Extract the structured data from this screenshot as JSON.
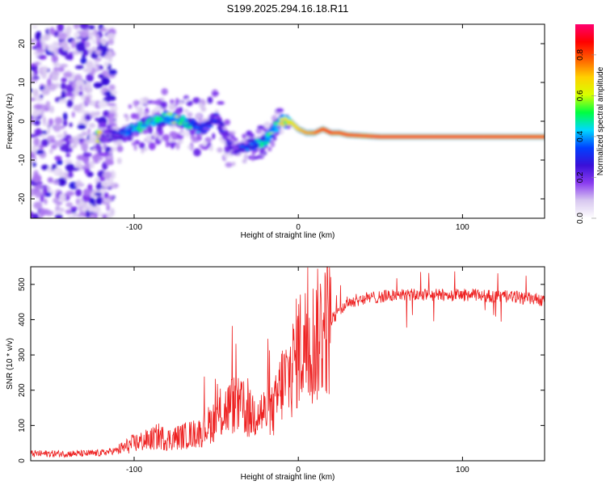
{
  "title": "S199.2025.294.16.18.R11",
  "chart_data": [
    {
      "type": "heatmap",
      "panel": "spectrogram",
      "xlabel": "Height of straight line (km)",
      "ylabel": "Frequency (Hz)",
      "xlim": [
        -163,
        150
      ],
      "ylim": [
        -25,
        25
      ],
      "xticks": [
        -100,
        0,
        100
      ],
      "yticks": [
        -20,
        -10,
        0,
        10,
        20
      ],
      "colorbar": {
        "label": "Normalized spectral amplitude",
        "range": [
          0.0,
          0.95
        ],
        "ticks": [
          0.0,
          0.2,
          0.4,
          0.6,
          0.8
        ],
        "colormap": [
          "#ffffff",
          "#d8c8f0",
          "#8a3cf0",
          "#3a10d8",
          "#0040ff",
          "#00d8ff",
          "#00ff40",
          "#d8ff00",
          "#ffd000",
          "#ff6000",
          "#ff0000",
          "#ff0070"
        ]
      },
      "ridge": {
        "x": [
          -120,
          -105,
          -100,
          -90,
          -80,
          -70,
          -60,
          -55,
          -50,
          -45,
          -40,
          -35,
          -30,
          -25,
          -20,
          -15,
          -10,
          -5,
          0,
          5,
          10,
          15,
          20,
          25,
          30,
          50,
          100,
          150
        ],
        "y": [
          -4,
          -3,
          -2,
          0,
          1,
          0,
          -2,
          -1,
          1,
          -3,
          -7,
          -7,
          -6,
          -6,
          -5,
          -2,
          0,
          0,
          -2,
          -3,
          -3,
          -2,
          -3,
          -3,
          -3.5,
          -4,
          -4,
          -4
        ],
        "peak_amplitude": [
          0.2,
          0.35,
          0.5,
          0.45,
          0.55,
          0.5,
          0.35,
          0.3,
          0.3,
          0.25,
          0.25,
          0.3,
          0.35,
          0.45,
          0.5,
          0.55,
          0.6,
          0.65,
          0.7,
          0.75,
          0.8,
          0.85,
          0.9,
          0.9,
          0.9,
          0.92,
          0.92,
          0.9
        ]
      },
      "noise_region_x": [
        -163,
        -120
      ]
    },
    {
      "type": "line",
      "panel": "snr",
      "xlabel": "Height of straight line (km)",
      "ylabel": "SNR (10 * v/v)",
      "xlim": [
        -163,
        150
      ],
      "ylim": [
        0,
        550
      ],
      "xticks": [
        -100,
        0,
        100
      ],
      "yticks": [
        0,
        100,
        200,
        300,
        400,
        500
      ],
      "color": "#ee2222",
      "series": [
        {
          "name": "SNR",
          "x": [
            -163,
            -150,
            -140,
            -130,
            -120,
            -110,
            -100,
            -95,
            -90,
            -85,
            -80,
            -75,
            -70,
            -65,
            -60,
            -55,
            -50,
            -45,
            -40,
            -35,
            -30,
            -25,
            -20,
            -15,
            -10,
            -5,
            0,
            5,
            10,
            15,
            20,
            25,
            30,
            40,
            50,
            60,
            70,
            80,
            90,
            100,
            110,
            120,
            130,
            140,
            150
          ],
          "values": [
            20,
            20,
            20,
            20,
            22,
            30,
            50,
            55,
            60,
            70,
            60,
            65,
            70,
            75,
            80,
            100,
            120,
            140,
            160,
            150,
            130,
            140,
            135,
            140,
            220,
            240,
            320,
            330,
            340,
            380,
            400,
            420,
            450,
            460,
            465,
            470,
            470,
            470,
            470,
            470,
            470,
            465,
            465,
            460,
            455
          ]
        }
      ]
    }
  ]
}
